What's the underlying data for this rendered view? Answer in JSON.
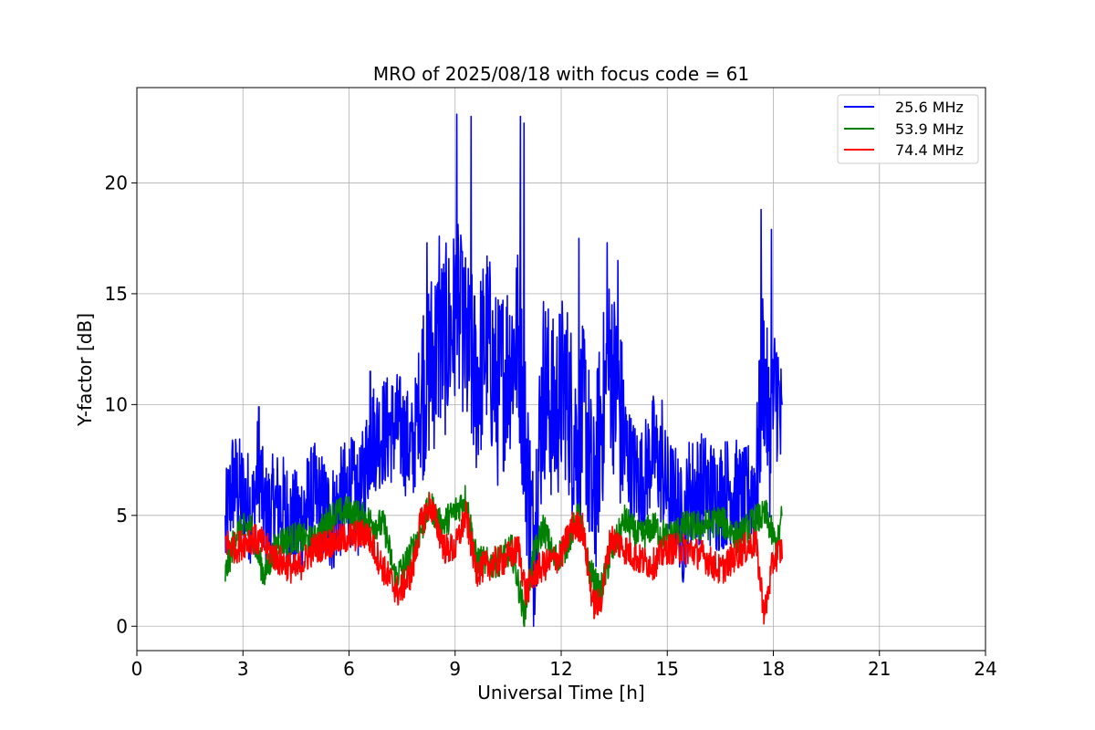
{
  "chart_data": {
    "type": "line",
    "title": "MRO of 2025/08/18 with focus code = 61",
    "xlabel": "Universal Time [h]",
    "ylabel": "Y-factor [dB]",
    "xlim": [
      0,
      24
    ],
    "ylim": [
      -1.1,
      24.3
    ],
    "xticks": [
      0,
      3,
      6,
      9,
      12,
      15,
      18,
      21,
      24
    ],
    "yticks": [
      0,
      5,
      10,
      15,
      20
    ],
    "grid": true,
    "legend_position": "top-right",
    "series": [
      {
        "name": "25.6 MHz",
        "color": "#0000ff",
        "x": [
          2.5,
          2.7,
          3.0,
          3.3,
          3.45,
          3.6,
          4.0,
          4.5,
          5.0,
          5.5,
          6.0,
          6.3,
          6.6,
          7.0,
          7.4,
          7.8,
          8.0,
          8.2,
          8.5,
          8.8,
          9.05,
          9.3,
          9.6,
          9.9,
          10.2,
          10.5,
          10.8,
          11.0,
          11.2,
          11.5,
          11.8,
          12.1,
          12.4,
          12.7,
          12.9,
          13.1,
          13.4,
          13.7,
          14.0,
          14.3,
          14.6,
          15.0,
          15.3,
          15.45,
          15.6,
          16.0,
          16.4,
          16.8,
          17.2,
          17.55,
          17.7,
          17.9,
          18.1,
          18.25
        ],
        "y": [
          4.2,
          6.5,
          5.8,
          5.2,
          7.5,
          4.8,
          5.5,
          4.5,
          5.8,
          4.8,
          6.2,
          5.5,
          8.5,
          8.8,
          9.0,
          7.8,
          10.5,
          11.5,
          12.5,
          13.0,
          14.0,
          12.5,
          11.0,
          13.0,
          10.5,
          12.0,
          13.0,
          8.0,
          3.5,
          11.0,
          9.5,
          11.0,
          8.5,
          9.5,
          5.0,
          9.0,
          12.0,
          9.0,
          7.0,
          6.5,
          8.0,
          6.2,
          5.5,
          4.2,
          6.0,
          6.3,
          5.8,
          6.2,
          5.5,
          6.8,
          12.0,
          8.5,
          11.0,
          8.0
        ],
        "peak_x": [
          3.45,
          6.6,
          8.2,
          8.55,
          9.05,
          9.2,
          9.45,
          10.85,
          10.95,
          12.5,
          13.3,
          13.6,
          14.85,
          17.65,
          17.95
        ],
        "peak_y": [
          9.9,
          11.5,
          17.3,
          17.6,
          23.1,
          16.9,
          23.0,
          23.0,
          22.7,
          17.5,
          17.3,
          16.5,
          10.2,
          18.8,
          17.9
        ]
      },
      {
        "name": "53.9 MHz",
        "color": "#008000",
        "x": [
          2.5,
          2.8,
          3.2,
          3.6,
          4.0,
          4.5,
          5.0,
          5.5,
          6.0,
          6.5,
          7.0,
          7.3,
          7.6,
          8.0,
          8.3,
          8.6,
          9.0,
          9.3,
          9.6,
          10.0,
          10.3,
          10.6,
          10.95,
          11.2,
          11.5,
          11.8,
          12.1,
          12.5,
          12.8,
          13.1,
          13.4,
          13.8,
          14.2,
          14.6,
          15.0,
          15.5,
          16.0,
          16.5,
          17.0,
          17.5,
          17.8,
          18.1,
          18.25
        ],
        "y": [
          2.3,
          4.2,
          4.5,
          2.3,
          3.8,
          4.0,
          3.8,
          5.0,
          5.2,
          4.8,
          4.5,
          2.2,
          2.8,
          4.2,
          5.5,
          4.5,
          5.2,
          5.8,
          3.0,
          2.8,
          3.0,
          3.5,
          0.5,
          3.0,
          4.5,
          3.0,
          3.5,
          5.0,
          2.5,
          1.5,
          3.2,
          4.8,
          4.0,
          4.5,
          4.0,
          4.5,
          4.5,
          4.8,
          4.0,
          4.8,
          5.0,
          3.5,
          5.0
        ]
      },
      {
        "name": "74.4 MHz",
        "color": "#ff0000",
        "x": [
          2.5,
          2.8,
          3.2,
          3.5,
          4.0,
          4.5,
          5.0,
          5.5,
          6.0,
          6.5,
          7.0,
          7.4,
          7.8,
          8.0,
          8.3,
          8.7,
          9.0,
          9.3,
          9.6,
          10.0,
          10.4,
          10.8,
          11.0,
          11.3,
          11.6,
          12.0,
          12.3,
          12.6,
          12.9,
          13.1,
          13.4,
          13.8,
          14.2,
          14.6,
          15.0,
          15.5,
          16.0,
          16.5,
          17.0,
          17.5,
          17.75,
          18.0,
          18.25
        ],
        "y": [
          3.8,
          3.5,
          4.0,
          3.8,
          3.0,
          2.5,
          3.5,
          3.8,
          4.0,
          4.2,
          2.5,
          1.5,
          2.5,
          4.5,
          5.5,
          3.5,
          3.5,
          5.0,
          2.5,
          2.8,
          3.0,
          3.5,
          1.5,
          2.5,
          2.8,
          3.2,
          4.5,
          4.5,
          1.0,
          1.0,
          4.0,
          3.5,
          3.0,
          2.8,
          3.5,
          3.5,
          3.2,
          2.5,
          3.3,
          3.8,
          0.5,
          3.0,
          3.5
        ]
      }
    ]
  }
}
